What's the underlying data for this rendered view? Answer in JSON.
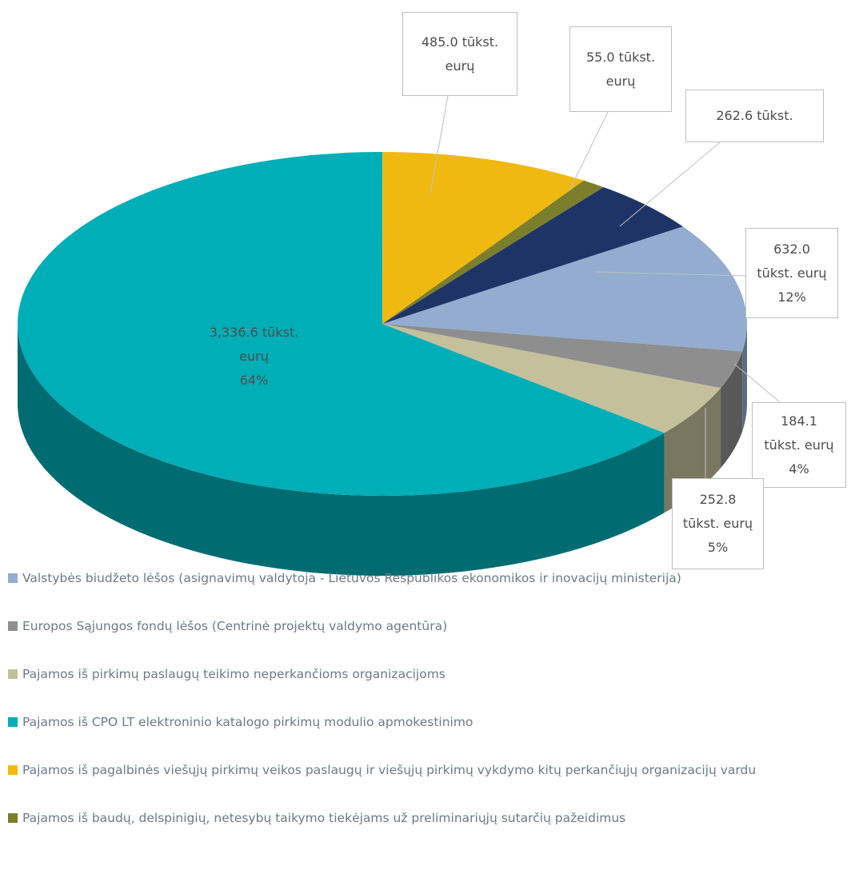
{
  "chart_data": {
    "type": "pie3d",
    "categories": [
      "Valstybės biudžeto lėšos (asignavimų valdytoja - Lietuvos Respublikos ekonomikos ir inovacijų ministerija)",
      "Europos Sąjungos fondų lėšos (Centrinė projektų valdymo agentūra)",
      "Pajamos iš pirkimų paslaugų teikimo neperkančioms organizacijoms",
      "Pajamos iš CPO LT elektroninio katalogo pirkimų modulio apmokestinimo",
      "Pajamos iš pagalbinės viešųjų pirkimų veikos paslaugų ir viešųjų pirkimų vykdymo kitų perkančiųjų organizacijų vardu",
      "Pajamos iš baudų, delspinigių, netesybų taikymo tiekėjams už preliminariųjų sutarčių pažeidimus",
      null
    ],
    "values": [
      632.0,
      184.1,
      252.8,
      3336.6,
      485.0,
      55.0,
      262.6
    ],
    "value_labels": [
      "632.0\ntūkst. eurų\n12%",
      "184.1\ntūkst. eurų\n4%",
      "252.8\ntūkst. eurų\n5%",
      "3,336.6 tūkst.\neurų\n64%",
      "485.0 tūkst.\neurų",
      "55.0 tūkst.\neurų",
      "262.6 tūkst."
    ],
    "colors": [
      "#93acd0",
      "#8e8e8e",
      "#c4c09b",
      "#00aeb7",
      "#f0b912",
      "#7b7f2b",
      "#1e3466"
    ],
    "legend": true
  }
}
